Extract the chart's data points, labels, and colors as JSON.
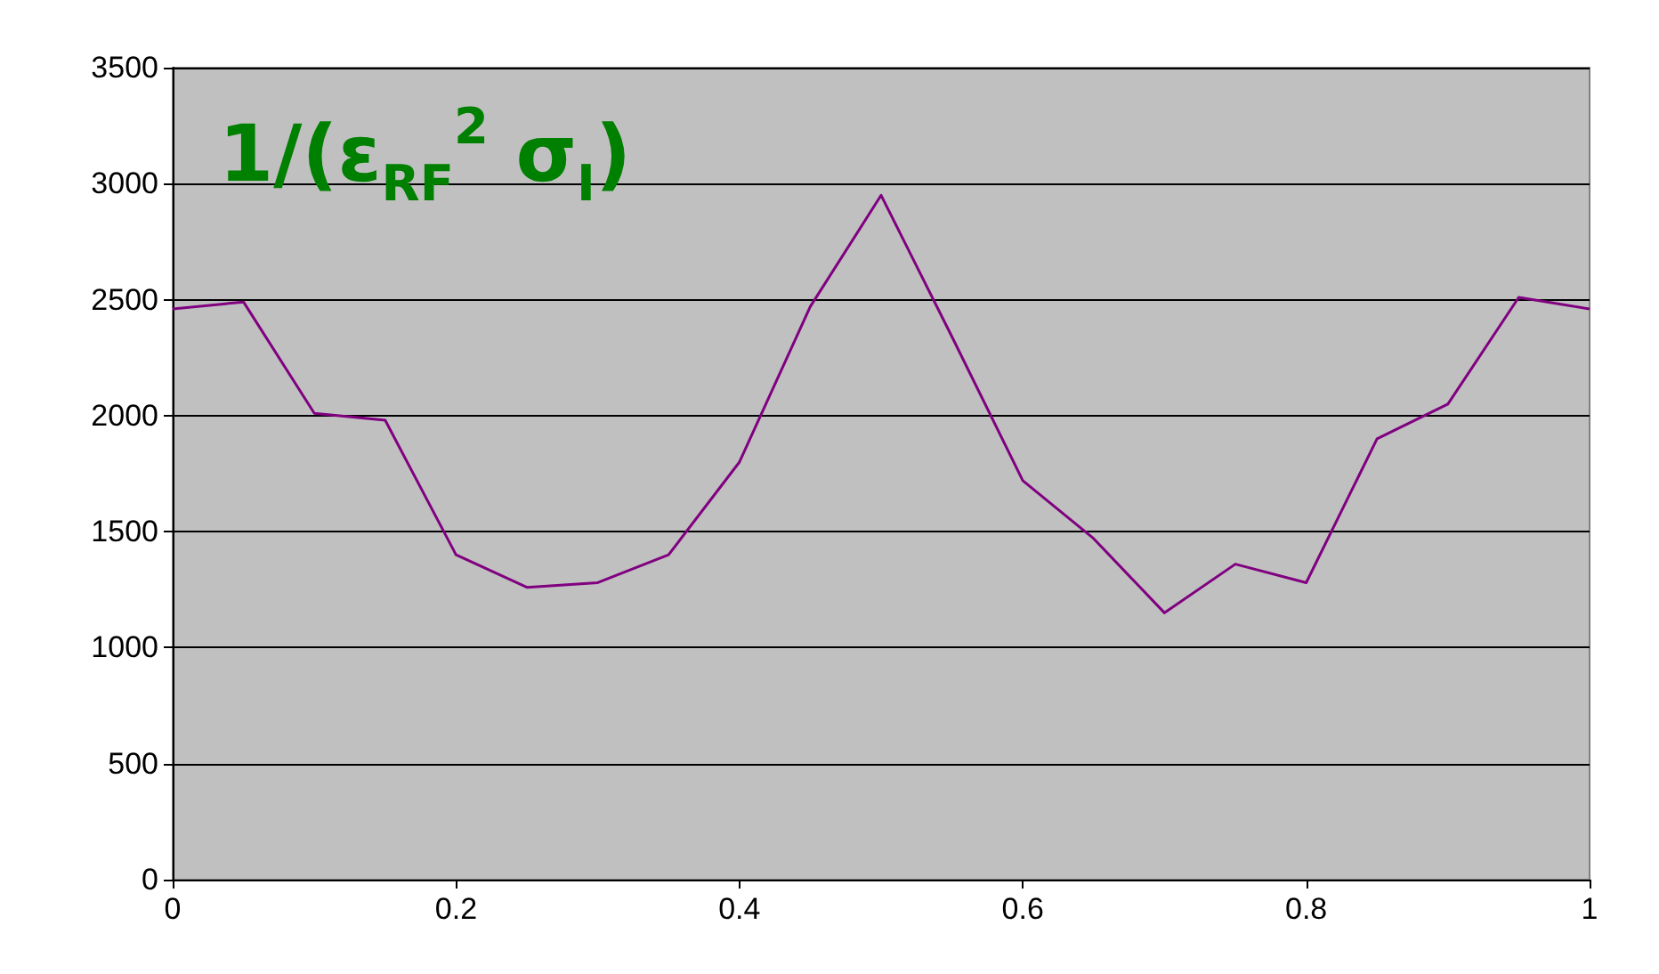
{
  "chart_data": {
    "type": "line",
    "title": "1/(ε$_{RF}$$^{2}$ σ$_{I}$)",
    "x": [
      0,
      0.05,
      0.1,
      0.15,
      0.2,
      0.25,
      0.3,
      0.35,
      0.4,
      0.45,
      0.5,
      0.55,
      0.6,
      0.65,
      0.7,
      0.75,
      0.8,
      0.85,
      0.9,
      0.95,
      1
    ],
    "series": [
      {
        "color": "#800080",
        "values": [
          2460,
          2490,
          2010,
          1980,
          1400,
          1260,
          1280,
          1400,
          1800,
          2470,
          2950,
          2340,
          1720,
          1470,
          1150,
          1360,
          1280,
          1900,
          2050,
          2510,
          2460
        ]
      }
    ],
    "xlim": [
      0,
      1
    ],
    "xticks": [
      0,
      0.2,
      0.4,
      0.6,
      0.8,
      1
    ],
    "ylim": [
      0,
      3500
    ],
    "yticks": [
      0,
      500,
      1000,
      1500,
      2000,
      2500,
      3000,
      3500
    ],
    "grid": "y",
    "marker": "none",
    "line_style": "solid"
  }
}
